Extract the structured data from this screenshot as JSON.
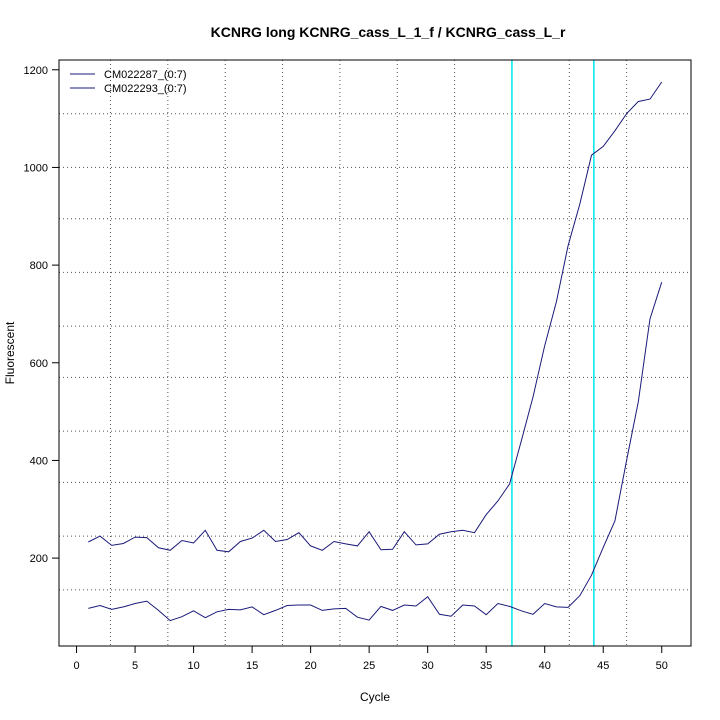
{
  "chart_data": {
    "type": "line",
    "title": "KCNRG long KCNRG_cass_L_1_f / KCNRG_cass_L_r",
    "xlabel": "Cycle",
    "ylabel": "Fluorescent",
    "xlim": [
      -1.5,
      52.5
    ],
    "ylim": [
      20,
      1220
    ],
    "xticks": [
      0,
      5,
      10,
      15,
      20,
      25,
      30,
      35,
      40,
      45,
      50
    ],
    "yticks": [
      200,
      400,
      600,
      800,
      1000,
      1200
    ],
    "grid": {
      "x": [
        2.9,
        7.8,
        12.7,
        17.6,
        22.5,
        27.4,
        32.3,
        37.2,
        42.1,
        47.0
      ],
      "y": [
        135,
        245,
        355,
        460,
        570,
        675,
        785,
        895,
        1000,
        1110
      ]
    },
    "threshold_lines_x": [
      37.2,
      44.2
    ],
    "threshold_color": "#00e5ee",
    "line_color": "#1a1a7a",
    "legend": {
      "position": "top-left",
      "entries": [
        "CM022287_(0:7)",
        "CM022293_(0:7)"
      ]
    },
    "x": [
      1,
      2,
      3,
      4,
      5,
      6,
      7,
      8,
      9,
      10,
      11,
      12,
      13,
      14,
      15,
      16,
      17,
      18,
      19,
      20,
      21,
      22,
      23,
      24,
      25,
      26,
      27,
      28,
      29,
      30,
      31,
      32,
      33,
      34,
      35,
      36,
      37,
      38,
      39,
      40,
      41,
      42,
      43,
      44,
      45,
      46,
      47,
      48,
      49,
      50
    ],
    "series": [
      {
        "name": "CM022287_(0:7)",
        "values": [
          233,
          245,
          226,
          230,
          243,
          242,
          221,
          216,
          236,
          231,
          257,
          216,
          213,
          234,
          241,
          257,
          234,
          238,
          252,
          225,
          216,
          234,
          229,
          225,
          254,
          217,
          218,
          254,
          227,
          229,
          249,
          254,
          257,
          252,
          289,
          317,
          352,
          440,
          530,
          635,
          725,
          840,
          925,
          1025,
          1043,
          1075,
          1110,
          1135,
          1140,
          1175
        ]
      },
      {
        "name": "CM022293_(0:7)",
        "values": [
          97,
          103,
          95,
          100,
          107,
          112,
          93,
          72,
          80,
          92,
          78,
          90,
          95,
          94,
          100,
          84,
          93,
          103,
          104,
          104,
          93,
          96,
          97,
          79,
          73,
          101,
          93,
          104,
          102,
          121,
          85,
          81,
          104,
          102,
          84,
          107,
          101,
          92,
          85,
          107,
          100,
          99,
          123,
          165,
          222,
          276,
          400,
          520,
          690,
          765
        ]
      }
    ]
  }
}
